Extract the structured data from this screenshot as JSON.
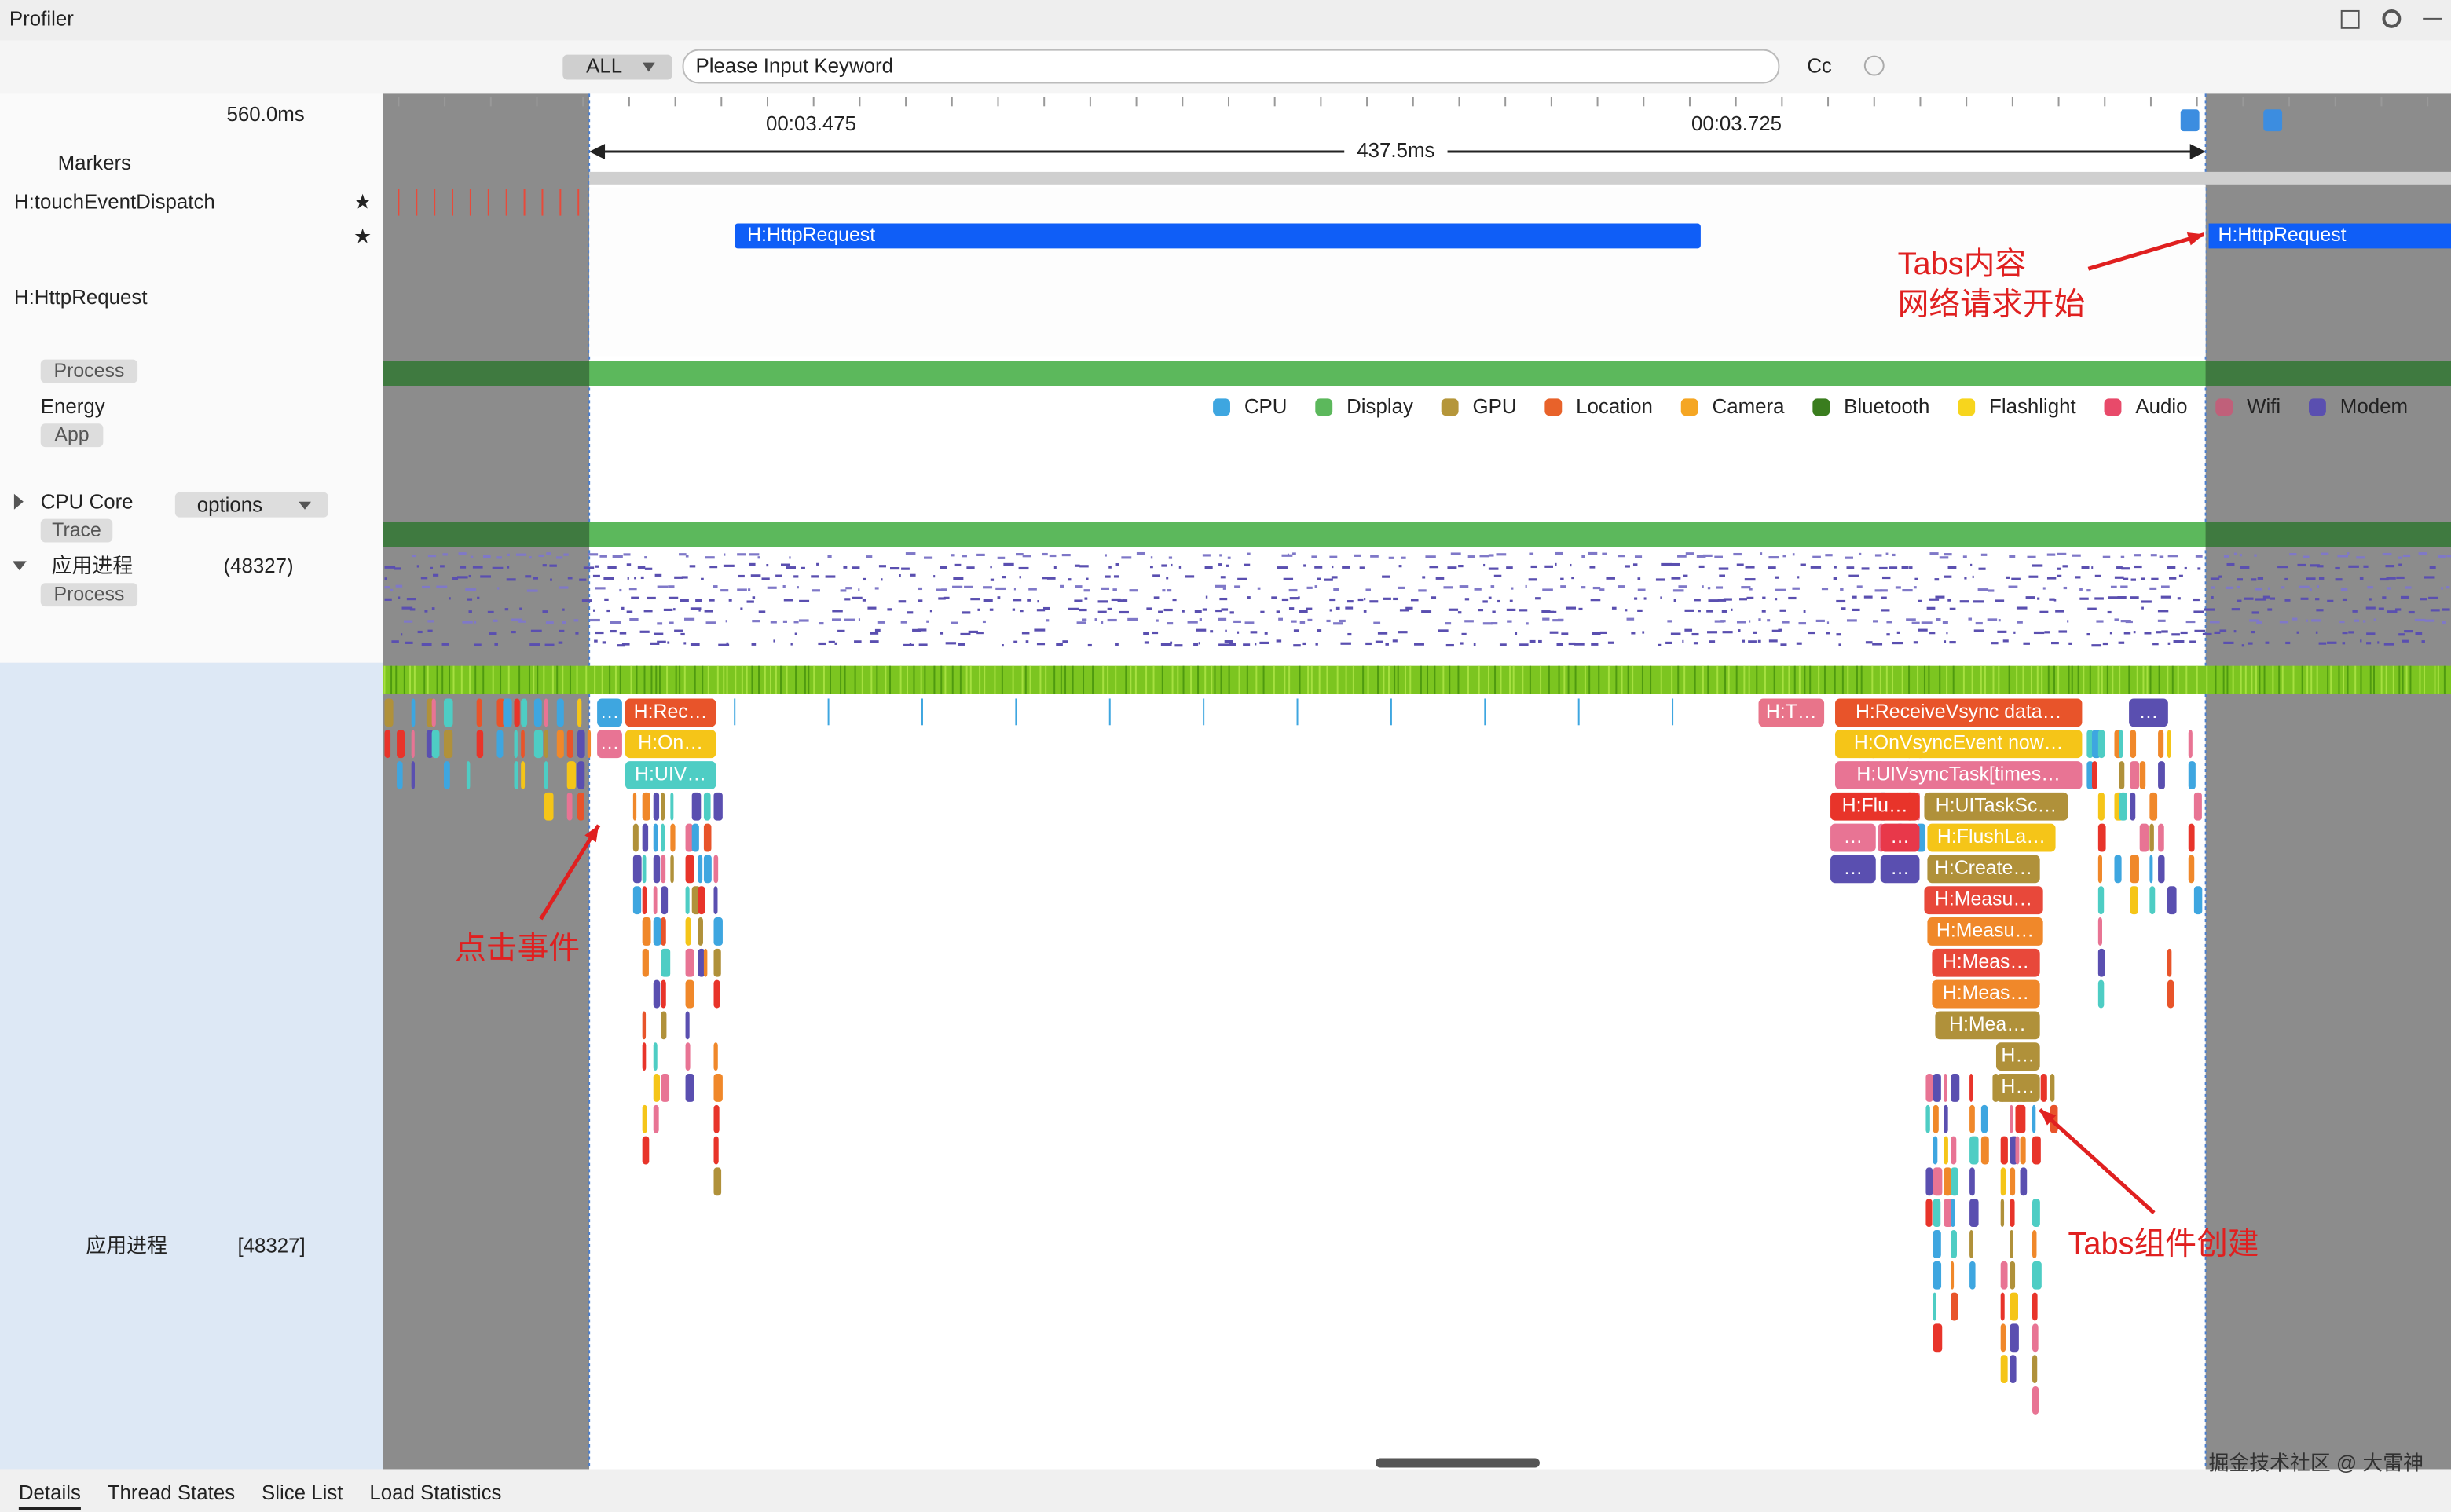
{
  "window": {
    "title": "Profiler"
  },
  "toolbar": {
    "filter": "ALL",
    "search_placeholder": "Please Input Keyword",
    "case": "Cc"
  },
  "timeline": {
    "zoom": "560.0ms",
    "ticks": [
      "00:03.475",
      "00:03.725"
    ],
    "selection": "437.5ms"
  },
  "rows": {
    "markers": "Markers",
    "touch": "H:touchEventDispatch",
    "http": "H:HttpRequest",
    "process_tag": "Process",
    "energy": "Energy",
    "app_tag": "App",
    "cpu_core": "CPU Core",
    "options": "options",
    "trace_tag": "Trace",
    "process_name": "应用进程",
    "process_pid": "(48327)",
    "process_tag2": "Process",
    "thread_name": "应用进程",
    "thread_pid": "[48327]"
  },
  "http_slices": [
    "H:HttpRequest",
    "H:HttpRequest"
  ],
  "energy_legend": [
    {
      "name": "CPU",
      "color": "#3ea6e0"
    },
    {
      "name": "Display",
      "color": "#5cb85c"
    },
    {
      "name": "GPU",
      "color": "#b5963a"
    },
    {
      "name": "Location",
      "color": "#e8622a"
    },
    {
      "name": "Camera",
      "color": "#f5a623"
    },
    {
      "name": "Bluetooth",
      "color": "#3a7d1e"
    },
    {
      "name": "Flashlight",
      "color": "#f7d51d"
    },
    {
      "name": "Audio",
      "color": "#e84a6a"
    },
    {
      "name": "Wifi",
      "color": "#c0607a"
    },
    {
      "name": "Modem",
      "color": "#5a4fb0"
    }
  ],
  "slices": [
    "…",
    "H:Rec…",
    "…",
    "H:On…",
    "H:UIV…",
    "H:T…",
    "H:ReceiveVsync data…",
    "…",
    "H:OnVsyncEvent now…",
    "H:UIVsyncTask[times…",
    "H:Flu…",
    "H:UITaskSc…",
    "…",
    "…",
    "H:FlushLa…",
    "…",
    "…",
    "H:Create…",
    "H:Measu…",
    "H:Measu…",
    "H:Meas…",
    "H:Meas…",
    "H:Mea…",
    "H…",
    "H…"
  ],
  "annotations": {
    "network": [
      "Tabs内容",
      "网络请求开始"
    ],
    "click": "点击事件",
    "tabs": "Tabs组件创建"
  },
  "tabs": [
    "Details",
    "Thread States",
    "Slice List",
    "Load Statistics"
  ],
  "watermark": "掘金技术社区 @ 大雷神"
}
